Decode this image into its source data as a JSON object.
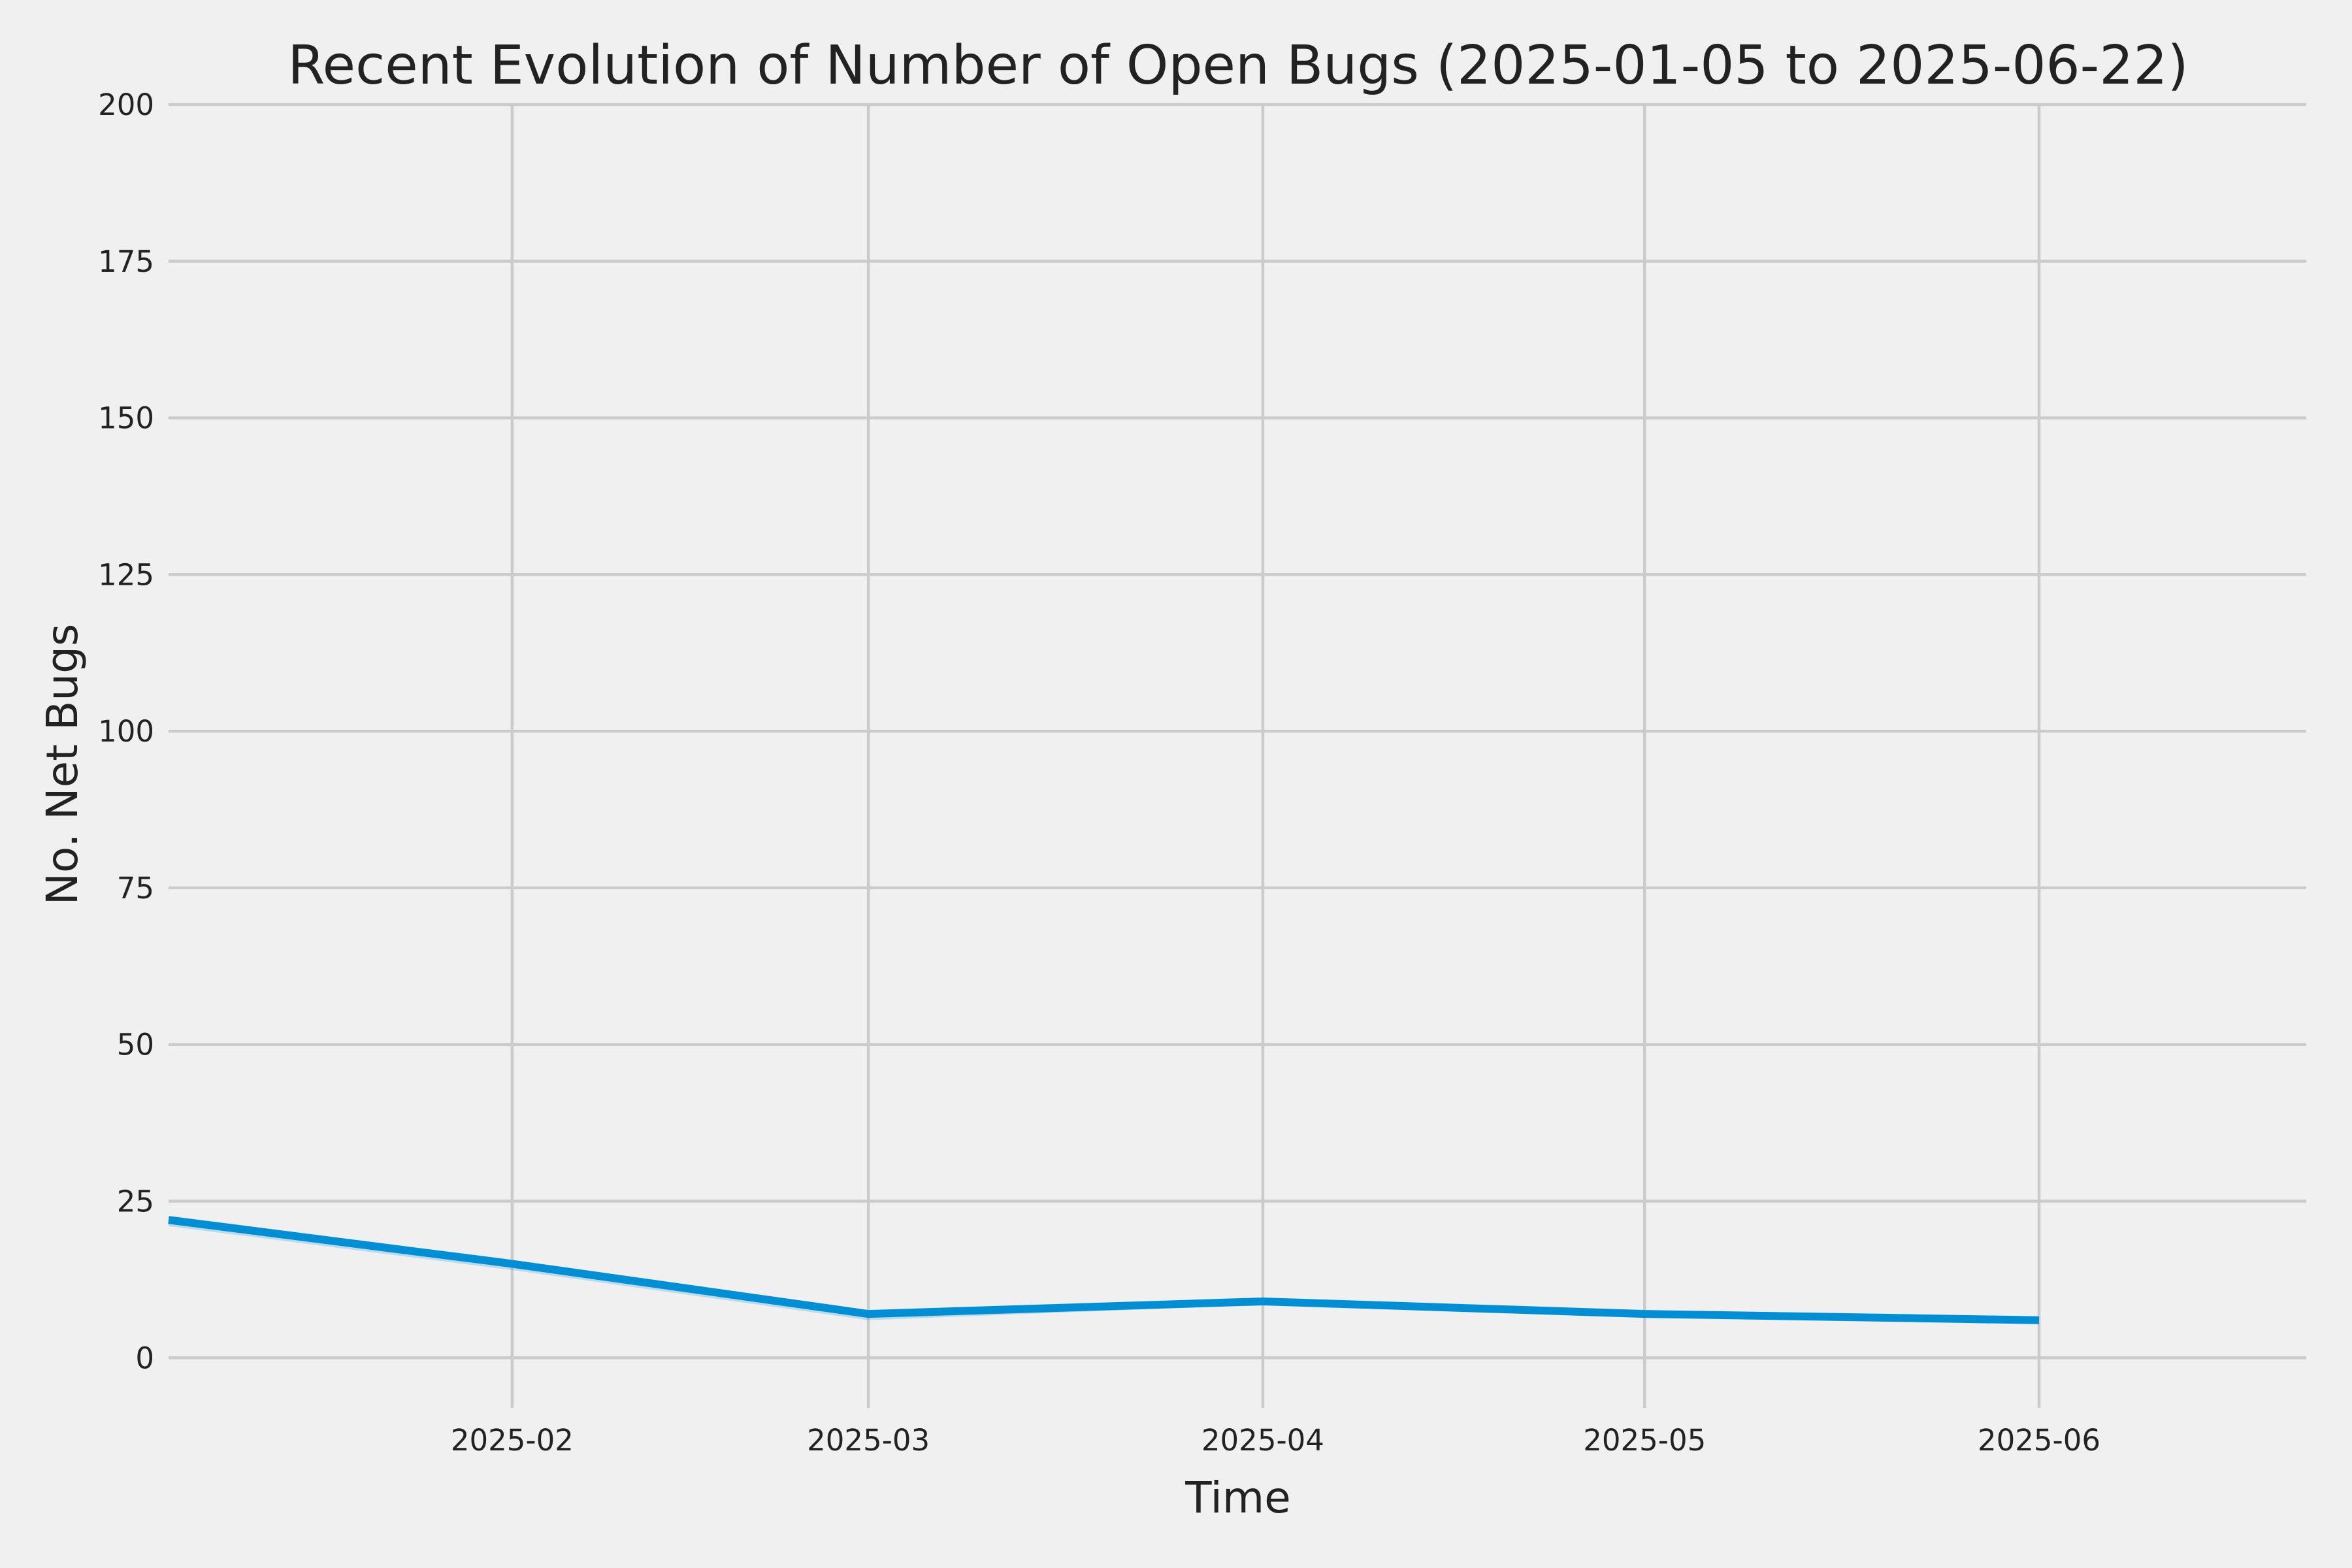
{
  "chart_data": {
    "type": "line",
    "title": "Recent Evolution of Number of Open Bugs (2025-01-05 to 2025-06-22)",
    "xlabel": "Time",
    "ylabel": "No. Net Bugs",
    "xlim": [
      "2025-01-05",
      "2025-06-22"
    ],
    "ylim": [
      -8,
      200
    ],
    "grid": true,
    "x_ticks": [
      "2025-02",
      "2025-03",
      "2025-04",
      "2025-05",
      "2025-06"
    ],
    "y_ticks": [
      0,
      25,
      50,
      75,
      100,
      125,
      150,
      175,
      200
    ],
    "series": [
      {
        "x": [
          "2025-01-05",
          "2025-02-01",
          "2025-03-01",
          "2025-04-01",
          "2025-05-01",
          "2025-06-01"
        ],
        "values": [
          22,
          15,
          7,
          9,
          7,
          6
        ],
        "band_low": [
          21,
          14,
          6,
          8.5,
          6.5,
          5.5
        ],
        "band_high": [
          22,
          15,
          7,
          9,
          7,
          6
        ],
        "color": "#008fd5"
      }
    ]
  }
}
